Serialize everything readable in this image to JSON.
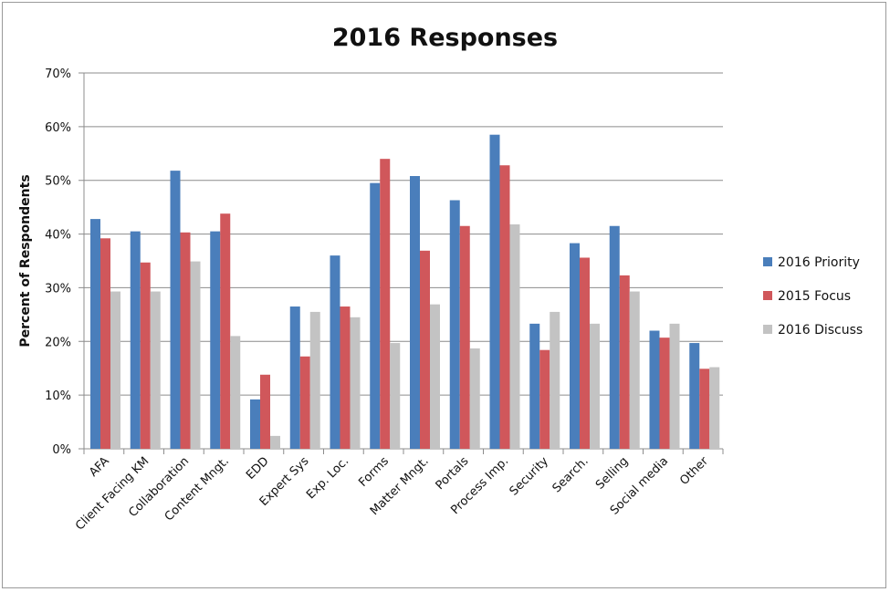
{
  "chart_data": {
    "type": "bar",
    "title": "2016 Responses",
    "xlabel": "",
    "ylabel": "Percent of Respondents",
    "ylim": [
      0,
      70
    ],
    "y_ticks": [
      "0%",
      "10%",
      "20%",
      "30%",
      "40%",
      "50%",
      "60%",
      "70%"
    ],
    "grid": true,
    "legend_position": "right",
    "categories": [
      "AFA",
      "Client Facing KM",
      "Collaboration",
      "Content Mngt.",
      "EDD",
      "Expert Sys",
      "Exp. Loc.",
      "Forms",
      "Matter Mngt.",
      "Portals",
      "Process Imp.",
      "Security",
      "Search.",
      "Selling",
      "Social media",
      "Other"
    ],
    "series": [
      {
        "name": "2016 Priority",
        "color": "#4a7ebb",
        "values": [
          42.8,
          40.5,
          51.8,
          40.5,
          9.2,
          26.5,
          36.0,
          49.5,
          50.8,
          46.3,
          58.5,
          23.3,
          38.3,
          41.5,
          22.0,
          19.7
        ]
      },
      {
        "name": "2015 Focus",
        "color": "#d0575b",
        "values": [
          39.2,
          34.7,
          40.3,
          43.8,
          13.8,
          17.2,
          26.5,
          54.0,
          36.9,
          41.5,
          52.8,
          18.4,
          35.6,
          32.3,
          20.7,
          14.9
        ]
      },
      {
        "name": "2016 Discuss",
        "color": "#c3c3c3",
        "values": [
          29.3,
          29.3,
          34.9,
          21.0,
          2.4,
          25.5,
          24.5,
          19.7,
          26.9,
          18.7,
          41.8,
          25.5,
          23.3,
          29.3,
          23.3,
          15.2
        ]
      }
    ]
  }
}
